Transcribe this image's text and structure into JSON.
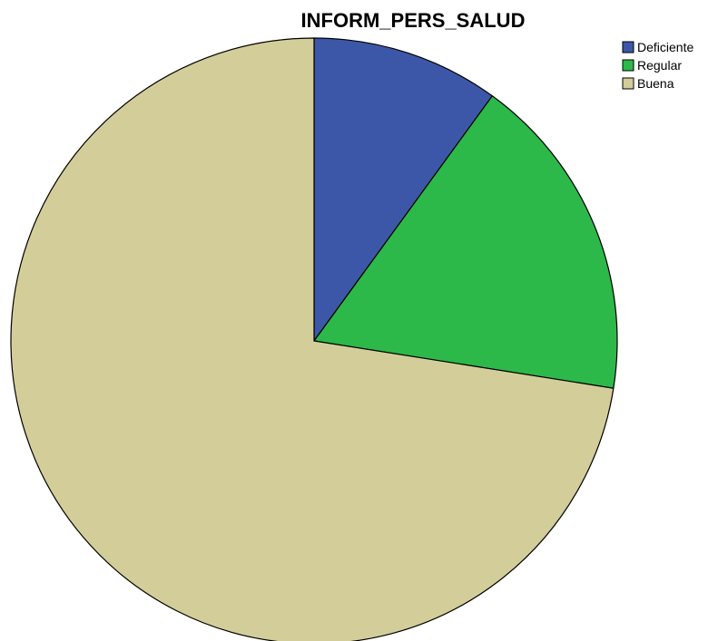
{
  "chart_data": {
    "type": "pie",
    "title": "INFORM_PERS_SALUD",
    "start_angle_deg": 0,
    "direction": "clockwise",
    "slices": [
      {
        "label": "Deficiente",
        "value": 10.0,
        "color": "#3d57a8"
      },
      {
        "label": "Regular",
        "value": 17.5,
        "color": "#2db84a"
      },
      {
        "label": "Buena",
        "value": 72.5,
        "color": "#d3ce99"
      }
    ],
    "legend": {
      "placement": "top-right",
      "entries": [
        "Deficiente",
        "Regular",
        "Buena"
      ]
    },
    "outline_color": "#000000"
  }
}
